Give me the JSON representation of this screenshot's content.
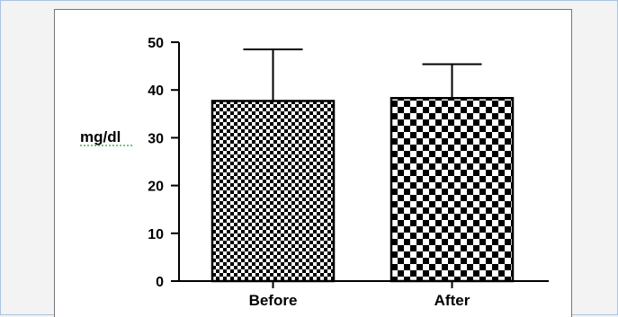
{
  "chart_data": {
    "type": "bar",
    "title": "",
    "xlabel": "",
    "ylabel": "mg/dl",
    "ylim": [
      0,
      50
    ],
    "yticks": [
      0,
      10,
      20,
      30,
      40,
      50
    ],
    "categories": [
      "Before",
      "After"
    ],
    "values": [
      37.7,
      38.3
    ],
    "errors": [
      10.8,
      7.1
    ],
    "patterns": [
      "fine-checkerboard",
      "coarse-checkerboard"
    ],
    "grid": false,
    "legend": "none"
  }
}
